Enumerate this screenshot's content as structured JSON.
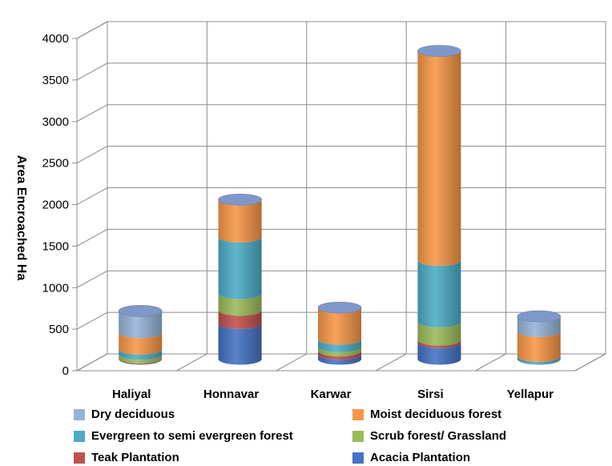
{
  "chart_data": {
    "type": "bar",
    "stacked": true,
    "style": "3d-cylinder",
    "categories": [
      "Haliyal",
      "Honnavar",
      "Karwar",
      "Sirsi",
      "Yellapur"
    ],
    "ylabel": "Area Encroached  Ha",
    "ylim": [
      0,
      4000
    ],
    "yticks": [
      "0",
      "500",
      "1000",
      "1500",
      "2000",
      "2500",
      "3000",
      "3500",
      "4000"
    ],
    "grid": true,
    "legend_position": "bottom",
    "series": [
      {
        "name": "Acacia Plantation",
        "color": "#4472C4",
        "values": [
          5,
          430,
          60,
          200,
          5
        ]
      },
      {
        "name": "Teak Plantation",
        "color": "#C0504D",
        "values": [
          10,
          160,
          40,
          30,
          0
        ]
      },
      {
        "name": "Scrub forest/ Grassland",
        "color": "#9BBB59",
        "values": [
          45,
          200,
          50,
          220,
          0
        ]
      },
      {
        "name": "Evergreen to semi evergreen forest",
        "color": "#4BACC6",
        "values": [
          60,
          680,
          90,
          740,
          30
        ]
      },
      {
        "name": "Moist deciduous forest",
        "color": "#F79646",
        "values": [
          200,
          450,
          380,
          2520,
          300
        ]
      },
      {
        "name": "Dry deciduous",
        "color": "#95B3D7",
        "values": [
          260,
          0,
          0,
          0,
          180
        ]
      }
    ]
  },
  "legend": [
    {
      "label": "Dry deciduous",
      "color": "#95B3D7"
    },
    {
      "label": "Moist deciduous forest",
      "color": "#F79646"
    },
    {
      "label": "Evergreen to semi evergreen forest",
      "color": "#4BACC6"
    },
    {
      "label": "Scrub forest/ Grassland",
      "color": "#9BBB59"
    },
    {
      "label": "Teak Plantation",
      "color": "#C0504D"
    },
    {
      "label": "Acacia Plantation",
      "color": "#4472C4"
    }
  ]
}
